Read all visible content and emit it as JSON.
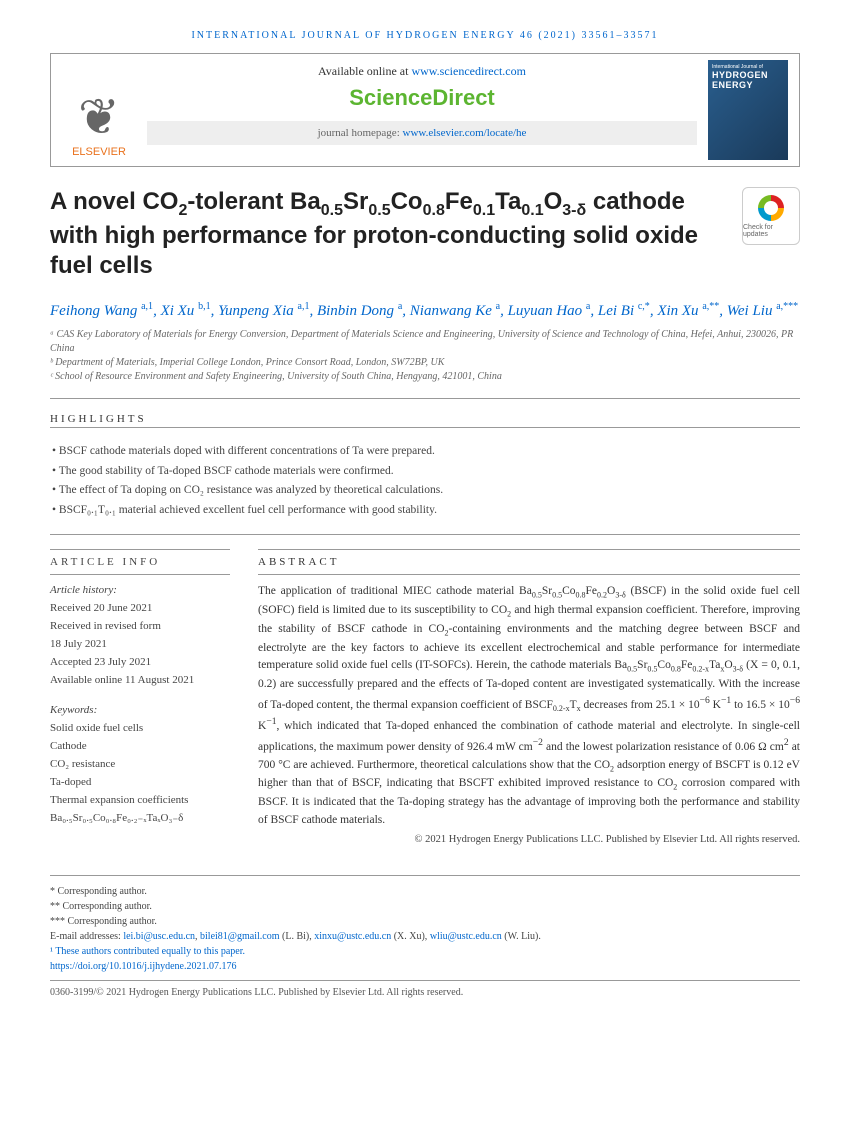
{
  "journal_header": "INTERNATIONAL JOURNAL OF HYDROGEN ENERGY 46 (2021) 33561–33571",
  "available_prefix": "Available online at ",
  "available_url": "www.sciencedirect.com",
  "sd_logo": "ScienceDirect",
  "homepage_prefix": "journal homepage: ",
  "homepage_url": "www.elsevier.com/locate/he",
  "elsevier_label": "ELSEVIER",
  "journal_cover_sub": "International Journal of",
  "journal_cover_main": "HYDROGEN ENERGY",
  "title_html": "A novel CO<sub>2</sub>-tolerant Ba<sub>0.5</sub>Sr<sub>0.5</sub>Co<sub>0.8</sub>Fe<sub>0.1</sub>Ta<sub>0.1</sub>O<sub>3-δ</sub> cathode with high performance for proton-conducting solid oxide fuel cells",
  "check_updates_label": "Check for updates",
  "authors_html": "<a>Feihong Wang</a> <sup>a,1</sup>, <a>Xi Xu</a> <sup>b,1</sup>, <a>Yunpeng Xia</a> <sup>a,1</sup>, <a>Binbin Dong</a> <sup>a</sup>, <a>Nianwang Ke</a> <sup>a</sup>, <a>Luyuan Hao</a> <sup>a</sup>, <a>Lei Bi</a> <sup>c,*</sup>, <a>Xin Xu</a> <sup>a,**</sup>, <a>Wei Liu</a> <sup>a,***</sup>",
  "affiliations": [
    "ᵃ CAS Key Laboratory of Materials for Energy Conversion, Department of Materials Science and Engineering, University of Science and Technology of China, Hefei, Anhui, 230026, PR China",
    "ᵇ Department of Materials, Imperial College London, Prince Consort Road, London, SW72BP, UK",
    "ᶜ School of Resource Environment and Safety Engineering, University of South China, Hengyang, 421001, China"
  ],
  "highlights_title": "HIGHLIGHTS",
  "highlights": [
    "BSCF cathode materials doped with different concentrations of Ta were prepared.",
    "The good stability of Ta-doped BSCF cathode materials were confirmed.",
    "The effect of Ta doping on CO₂ resistance was analyzed by theoretical calculations.",
    "BSCF₀.₁T₀.₁ material achieved excellent fuel cell performance with good stability."
  ],
  "article_info_title": "ARTICLE INFO",
  "article_history_label": "Article history:",
  "history": [
    "Received 20 June 2021",
    "Received in revised form",
    "18 July 2021",
    "Accepted 23 July 2021",
    "Available online 11 August 2021"
  ],
  "keywords_label": "Keywords:",
  "keywords": [
    "Solid oxide fuel cells",
    "Cathode",
    "CO₂ resistance",
    "Ta-doped",
    "Thermal expansion coefficients",
    "Ba₀.₅Sr₀.₅Co₀.₈Fe₀.₂₋ₓTaₓO₃₋δ"
  ],
  "abstract_title": "ABSTRACT",
  "abstract_html": "The application of traditional MIEC cathode material Ba<sub>0.5</sub>Sr<sub>0.5</sub>Co<sub>0.8</sub>Fe<sub>0.2</sub>O<sub>3-δ</sub> (BSCF) in the solid oxide fuel cell (SOFC) field is limited due to its susceptibility to CO<sub>2</sub> and high thermal expansion coefficient. Therefore, improving the stability of BSCF cathode in CO<sub>2</sub>-containing environments and the matching degree between BSCF and electrolyte are the key factors to achieve its excellent electrochemical and stable performance for intermediate temperature solid oxide fuel cells (IT-SOFCs). Herein, the cathode materials Ba<sub>0.5</sub>Sr<sub>0.5</sub>Co<sub>0.8</sub>Fe<sub>0.2-x</sub>Ta<sub>x</sub>O<sub>3-δ</sub> (X = 0, 0.1, 0.2) are successfully prepared and the effects of Ta-doped content are investigated systematically. With the increase of Ta-doped content, the thermal expansion coefficient of BSCF<sub>0.2-x</sub>T<sub>x</sub> decreases from 25.1 × 10<sup>−6</sup> K<sup>−1</sup> to 16.5 × 10<sup>−6</sup> K<sup>−1</sup>, which indicated that Ta-doped enhanced the combination of cathode material and electrolyte. In single-cell applications, the maximum power density of 926.4 mW cm<sup>−2</sup> and the lowest polarization resistance of 0.06 Ω cm<sup>2</sup> at 700 °C are achieved. Furthermore, theoretical calculations show that the CO<sub>2</sub> adsorption energy of BSCFT is 0.12 eV higher than that of BSCF, indicating that BSCFT exhibited improved resistance to CO<sub>2</sub> corrosion compared with BSCF. It is indicated that the Ta-doping strategy has the advantage of improving both the performance and stability of BSCF cathode materials.",
  "abstract_copyright": "© 2021 Hydrogen Energy Publications LLC. Published by Elsevier Ltd. All rights reserved.",
  "footer_corresponding": [
    "* Corresponding author.",
    "** Corresponding author.",
    "*** Corresponding author."
  ],
  "footer_emails_html": "E-mail addresses: <a>lei.bi@usc.edu.cn</a>, <a>bilei81@gmail.com</a> (L. Bi), <a>xinxu@ustc.edu.cn</a> (X. Xu), <a>wliu@ustc.edu.cn</a> (W. Liu).",
  "footer_equal": "¹ These authors contributed equally to this paper.",
  "doi_url": "https://doi.org/10.1016/j.ijhydene.2021.07.176",
  "footer_bottom": "0360-3199/© 2021 Hydrogen Energy Publications LLC. Published by Elsevier Ltd. All rights reserved."
}
